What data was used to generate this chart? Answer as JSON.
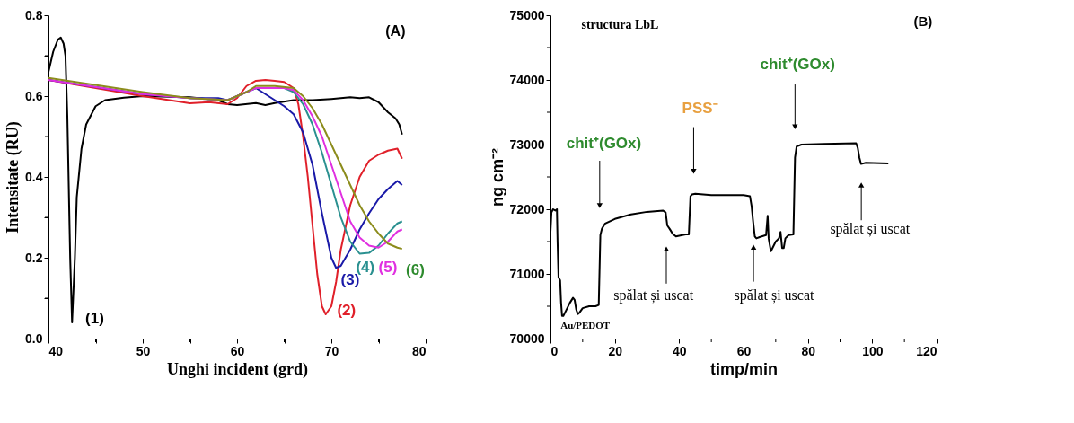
{
  "chart_data": [
    {
      "type": "line",
      "xlabel": "Unghi incident (grd)",
      "ylabel": "Intensitate (RU)",
      "xlim": [
        40,
        80
      ],
      "xticks": [
        40,
        {
          "value": 45,
          "label": null
        },
        50,
        {
          "value": 55,
          "label": null
        },
        60,
        {
          "value": 65,
          "label": null
        },
        70,
        {
          "value": 75,
          "label": null
        },
        80
      ],
      "ylim": [
        0,
        0.8
      ],
      "yticks": [
        {
          "value": 0,
          "label": "0.0"
        },
        {
          "value": 0.1,
          "label": null
        },
        0.2,
        {
          "value": 0.3,
          "label": null
        },
        0.4,
        {
          "value": 0.5,
          "label": null
        },
        0.6,
        {
          "value": 0.7,
          "label": null
        },
        0.8
      ],
      "grid": false,
      "line_style": "solid",
      "series": [
        {
          "color": "#000000",
          "x": [
            40,
            40.5,
            41,
            41.3,
            41.6,
            41.8,
            42,
            42.3,
            42.5,
            42.8,
            43,
            43.5,
            44,
            45,
            46,
            48,
            50,
            55,
            58,
            59,
            60,
            62,
            63,
            64,
            66,
            68,
            70,
            72,
            73,
            74,
            75,
            76,
            76.8,
            77.2,
            77.5
          ],
          "values": [
            0.66,
            0.71,
            0.74,
            0.745,
            0.73,
            0.7,
            0.55,
            0.2,
            0.04,
            0.2,
            0.35,
            0.47,
            0.53,
            0.575,
            0.59,
            0.596,
            0.6,
            0.597,
            0.59,
            0.58,
            0.578,
            0.583,
            0.578,
            0.583,
            0.59,
            0.59,
            0.593,
            0.597,
            0.595,
            0.597,
            0.585,
            0.56,
            0.545,
            0.53,
            0.505
          ]
        },
        {
          "color": "#e0202a",
          "x": [
            40,
            45,
            50,
            55,
            57,
            59,
            60,
            61,
            62,
            63,
            64,
            65,
            66,
            66.5,
            67,
            67.5,
            68,
            68.5,
            69,
            69.4,
            70,
            70.5,
            71,
            72,
            73,
            74,
            75,
            76,
            77,
            77.5
          ],
          "values": [
            0.64,
            0.62,
            0.6,
            0.582,
            0.585,
            0.58,
            0.595,
            0.625,
            0.638,
            0.64,
            0.638,
            0.635,
            0.62,
            0.58,
            0.5,
            0.4,
            0.28,
            0.16,
            0.08,
            0.06,
            0.08,
            0.14,
            0.22,
            0.33,
            0.4,
            0.44,
            0.455,
            0.465,
            0.47,
            0.445
          ]
        },
        {
          "color": "#1a1aa8",
          "x": [
            40,
            50,
            55,
            58,
            59,
            60,
            61,
            62,
            63,
            64,
            65,
            66,
            67,
            68,
            69,
            70,
            70.5,
            71,
            72,
            73,
            74,
            75,
            76,
            77,
            77.5
          ],
          "values": [
            0.64,
            0.605,
            0.595,
            0.595,
            0.59,
            0.6,
            0.61,
            0.62,
            0.605,
            0.59,
            0.575,
            0.555,
            0.51,
            0.43,
            0.31,
            0.2,
            0.175,
            0.18,
            0.22,
            0.27,
            0.31,
            0.345,
            0.37,
            0.39,
            0.38
          ]
        },
        {
          "color": "#2a9090",
          "x": [
            55,
            59,
            60,
            62,
            64,
            65,
            66,
            67,
            68,
            69,
            70,
            71,
            72,
            73,
            74,
            75,
            76,
            77,
            77.5
          ],
          "values": [
            0.595,
            0.59,
            0.6,
            0.62,
            0.62,
            0.62,
            0.61,
            0.58,
            0.53,
            0.46,
            0.38,
            0.3,
            0.24,
            0.21,
            0.212,
            0.23,
            0.26,
            0.285,
            0.29
          ]
        },
        {
          "color": "#e030e0",
          "x": [
            40,
            50,
            55,
            59,
            60,
            62,
            65,
            66,
            67,
            68,
            69,
            70,
            71,
            72,
            73,
            74,
            75,
            76,
            77,
            77.5
          ],
          "values": [
            0.64,
            0.605,
            0.595,
            0.59,
            0.6,
            0.62,
            0.62,
            0.615,
            0.59,
            0.55,
            0.5,
            0.43,
            0.36,
            0.29,
            0.25,
            0.23,
            0.225,
            0.24,
            0.265,
            0.27
          ]
        },
        {
          "color": "#8c8c1c",
          "x": [
            40,
            50,
            55,
            59,
            60,
            61,
            62,
            64,
            66,
            67,
            68,
            69,
            70,
            71,
            72,
            73,
            74,
            75,
            76,
            77,
            77.5
          ],
          "values": [
            0.645,
            0.61,
            0.595,
            0.59,
            0.6,
            0.61,
            0.625,
            0.625,
            0.62,
            0.6,
            0.57,
            0.53,
            0.48,
            0.43,
            0.38,
            0.33,
            0.29,
            0.26,
            0.235,
            0.225,
            0.222
          ]
        }
      ],
      "annotations": [
        "(A)",
        "(1)",
        "(2)",
        "(3)",
        "(4)",
        "(5)",
        "(6)"
      ]
    },
    {
      "type": "line",
      "xlabel": "timp/min",
      "ylabel": "ng cm⁻²",
      "xlim": [
        0,
        120
      ],
      "xticks": [
        0,
        {
          "value": 10,
          "label": null
        },
        20,
        {
          "value": 30,
          "label": null
        },
        40,
        {
          "value": 50,
          "label": null
        },
        60,
        {
          "value": 70,
          "label": null
        },
        80,
        {
          "value": 90,
          "label": null
        },
        100,
        {
          "value": 110,
          "label": null
        },
        120
      ],
      "ylim": [
        70000,
        75000
      ],
      "yticks": [
        70000,
        {
          "value": 70500,
          "label": null
        },
        71000,
        {
          "value": 71500,
          "label": null
        },
        72000,
        {
          "value": 72500,
          "label": null
        },
        73000,
        {
          "value": 73500,
          "label": null
        },
        74000,
        {
          "value": 74500,
          "label": null
        },
        75000
      ],
      "grid": false,
      "line_style": "solid",
      "series": [
        {
          "color": "#000000",
          "x": [
            0,
            0.3,
            0.8,
            1.5,
            2,
            2.2,
            2.5,
            3,
            3.3,
            3.6,
            4,
            5,
            6,
            7,
            7.5,
            8,
            8.5,
            9,
            10,
            12,
            14,
            15,
            15.5,
            16,
            17,
            20,
            25,
            30,
            35,
            35.8,
            36.3,
            37,
            38,
            39,
            40,
            42,
            43,
            43.5,
            44,
            45,
            50,
            55,
            60,
            62,
            62.5,
            63,
            63.5,
            64,
            65,
            67,
            67.5,
            67.8,
            68.5,
            69,
            70,
            71,
            71.5,
            72,
            72.5,
            73,
            74,
            75.5,
            76,
            76.5,
            78,
            85,
            95,
            95.5,
            96,
            96.5,
            98,
            105
          ],
          "values": [
            71650,
            71950,
            72000,
            71980,
            72000,
            71500,
            70950,
            70900,
            70550,
            70350,
            70350,
            70450,
            70550,
            70630,
            70600,
            70450,
            70380,
            70400,
            70470,
            70500,
            70500,
            70520,
            71600,
            71700,
            71780,
            71850,
            71920,
            71960,
            71980,
            71950,
            71750,
            71700,
            71620,
            71580,
            71590,
            71610,
            71610,
            72200,
            72230,
            72240,
            72220,
            72220,
            72220,
            72200,
            72050,
            71800,
            71580,
            71550,
            71570,
            71600,
            71900,
            71550,
            71350,
            71400,
            71500,
            71550,
            71650,
            71400,
            71400,
            71550,
            71600,
            71610,
            72800,
            72970,
            73000,
            73010,
            73020,
            72950,
            72800,
            72700,
            72720,
            72710
          ]
        }
      ],
      "annotations": [
        "structura LbL",
        "(B)",
        "Au/PEDOT",
        "chit⁺(GOx)",
        "PSS⁻",
        "chit⁺(GOx)",
        "spălat și uscat",
        "spălat și uscat",
        "spălat și uscat"
      ]
    }
  ]
}
